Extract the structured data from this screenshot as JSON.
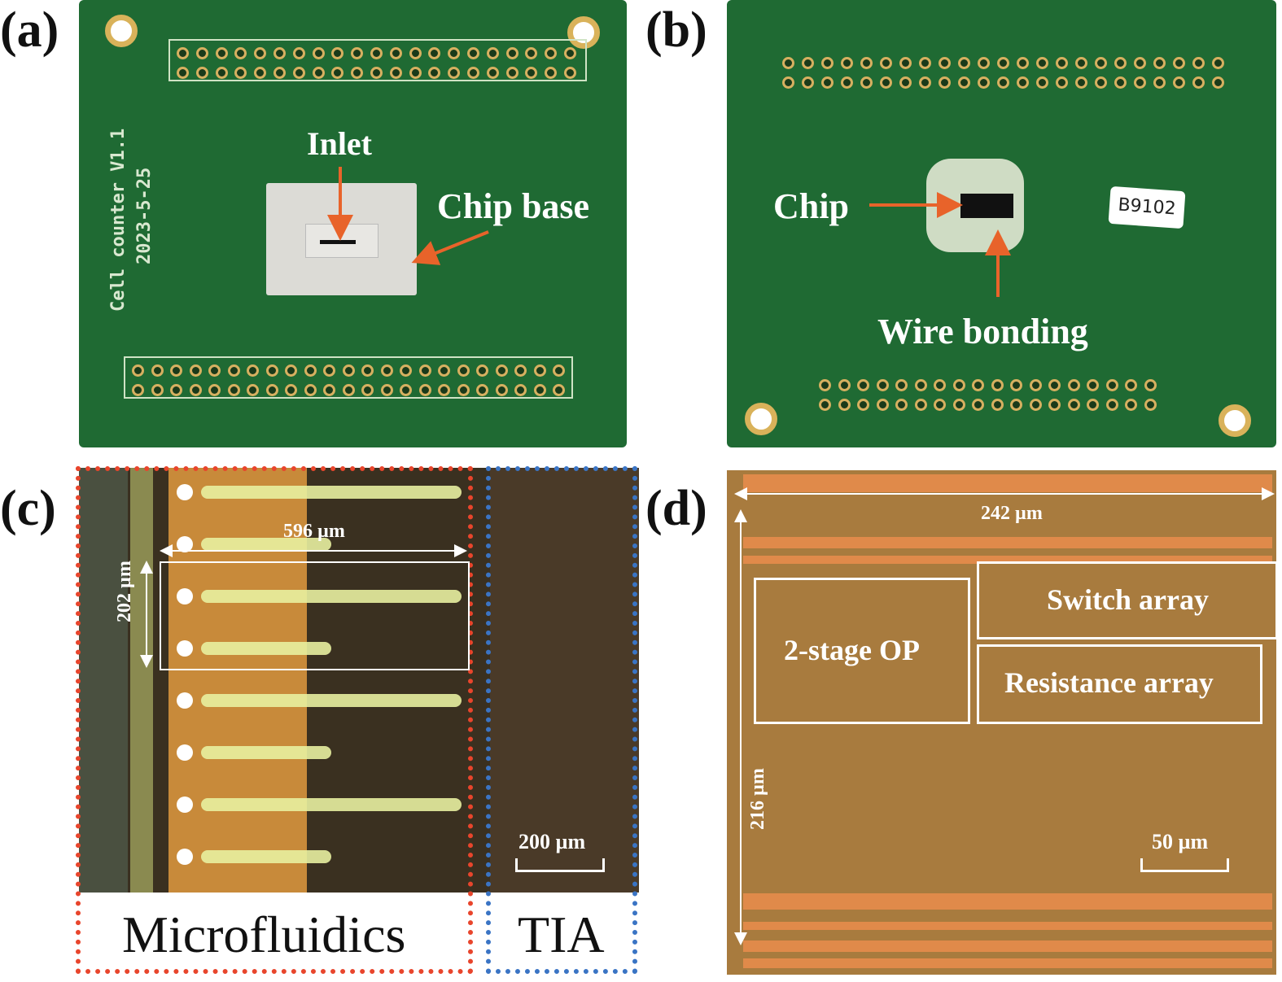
{
  "panels": {
    "a": {
      "label": "(a)",
      "board_name": "Cell counter V1.1",
      "board_date": "2023-5-25",
      "inlet_label": "Inlet",
      "chip_base_label": "Chip base"
    },
    "b": {
      "label": "(b)",
      "chip_label": "Chip",
      "wire_bonding_label": "Wire bonding",
      "sticker_text": "B9102"
    },
    "c": {
      "label": "(c)",
      "width_dim": "596 µm",
      "height_dim": "202 µm",
      "scale_bar": "200 µm",
      "microfluidics_label": "Microfluidics",
      "tia_label": "TIA",
      "microfluidics_border_color": "#e8452c",
      "tia_border_color": "#3a74c4"
    },
    "d": {
      "label": "(d)",
      "width_dim": "242 µm",
      "height_dim": "216 µm",
      "scale_bar": "50 µm",
      "block_op": "2-stage OP",
      "block_switch": "Switch array",
      "block_resistance": "Resistance array"
    }
  },
  "colors": {
    "pcb_green": "#1f6a33",
    "arrow": "#e8632a",
    "die": "#a87b3e"
  }
}
